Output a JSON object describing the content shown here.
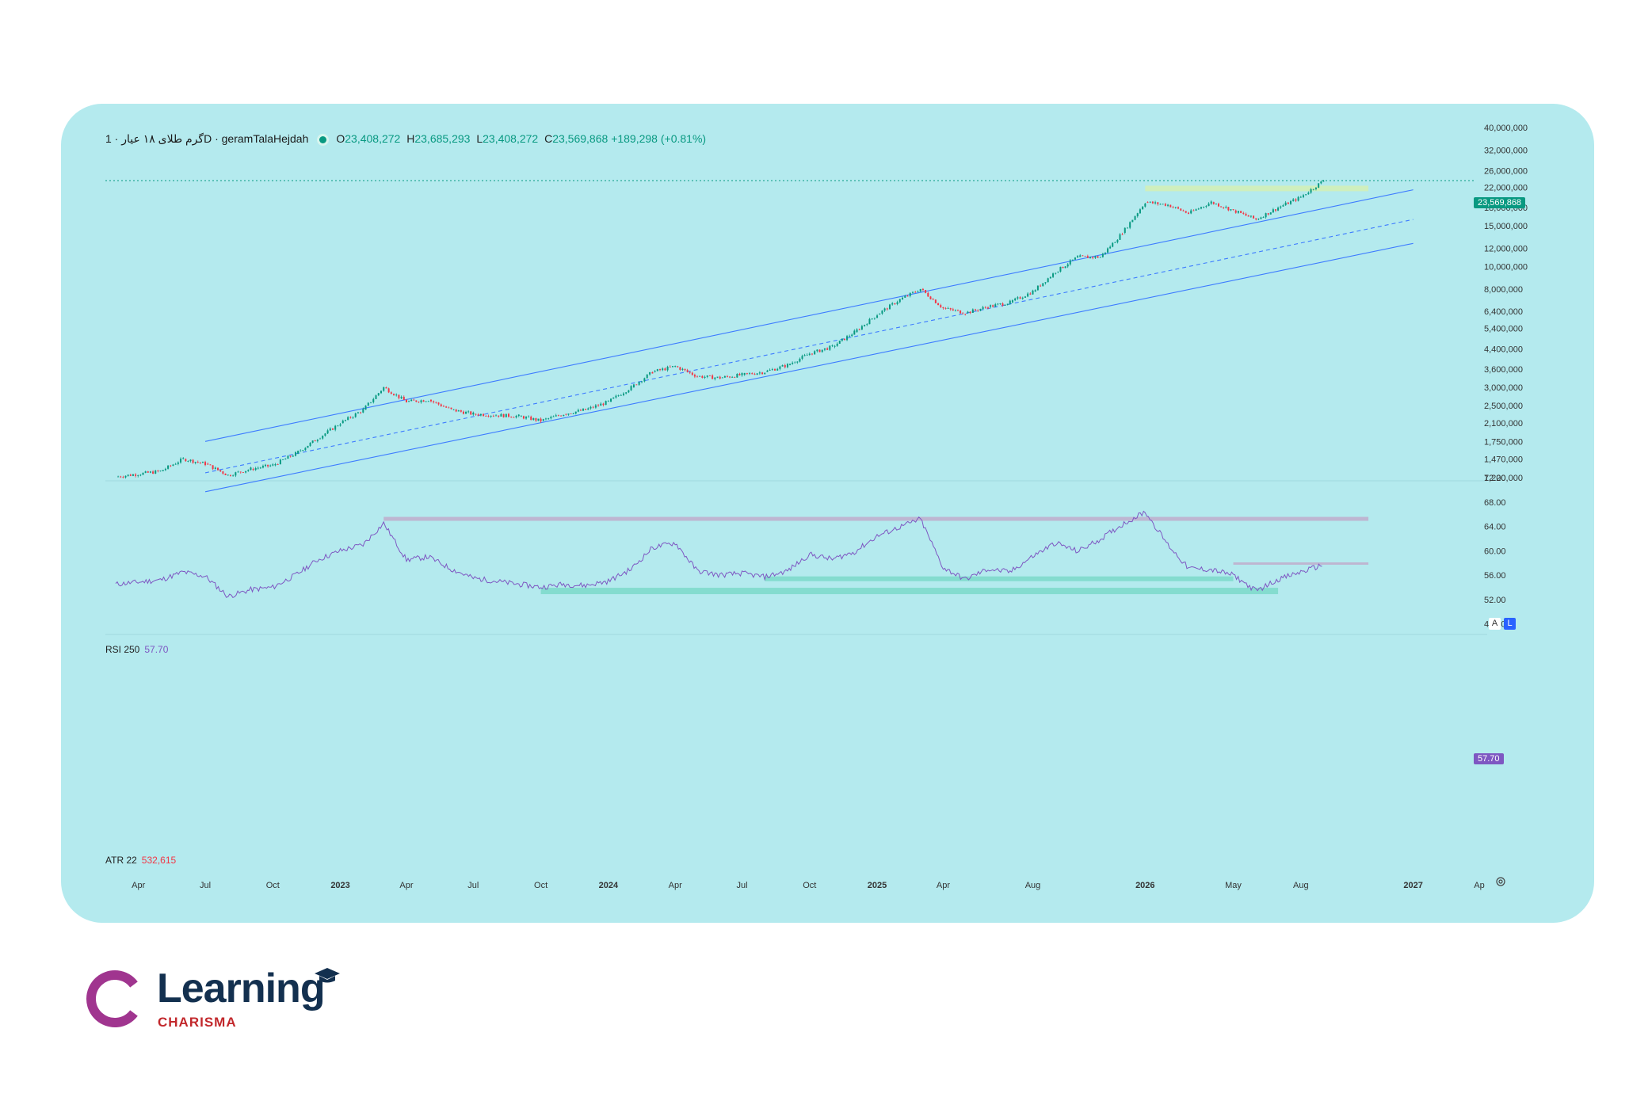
{
  "legend": {
    "symbol": "گرم طلای ۱۸ عیار · 1D · geramTalaHejdah",
    "open_label": "O",
    "open": "23,408,272",
    "high_label": "H",
    "high": "23,685,293",
    "low_label": "L",
    "low": "23,408,272",
    "close_label": "C",
    "close": "23,569,868",
    "change": "+189,298 (+0.81%)"
  },
  "last_price_tag": "23,569,868",
  "price_axis": [
    "40,000,000",
    "32,000,000",
    "26,000,000",
    "22,000,000",
    "18,000,000",
    "15,000,000",
    "12,000,000",
    "10,000,000",
    "8,000,000",
    "6,400,000",
    "5,400,000",
    "4,400,000",
    "3,600,000",
    "3,000,000",
    "2,500,000",
    "2,100,000",
    "1,750,000",
    "1,470,000",
    "1,220,000"
  ],
  "rsi": {
    "label": "RSI 250",
    "value": "57.70",
    "axis": [
      "72.00",
      "68.00",
      "64.00",
      "60.00",
      "56.00",
      "52.00",
      "48.00"
    ]
  },
  "atr": {
    "label": "ATR 22",
    "value": "532,615"
  },
  "time_axis": [
    "Apr",
    "Jul",
    "Oct",
    "2023",
    "Apr",
    "Jul",
    "Oct",
    "2024",
    "Apr",
    "Jul",
    "Oct",
    "2025",
    "Apr",
    "Aug",
    "2026",
    "May",
    "Aug",
    "2027",
    "Ap"
  ],
  "buttons": {
    "auto": "A",
    "log": "L"
  },
  "colors": {
    "background": "#b4eaee",
    "up": "#089981",
    "down": "#f23645",
    "channel": "#3d7bff",
    "rsi": "#7e57c2"
  },
  "logo": {
    "word": "Learning",
    "sub": "CHARISMA"
  },
  "chart_data": {
    "type": "candlestick",
    "scale": "log",
    "x_range": [
      "2022-03",
      "2027-04"
    ],
    "y_range": [
      1220000,
      40000000
    ],
    "last_close": 23569868,
    "closes": [
      {
        "date": "2022-03",
        "value": 1230000
      },
      {
        "date": "2022-05",
        "value": 1300000
      },
      {
        "date": "2022-06",
        "value": 1470000
      },
      {
        "date": "2022-07",
        "value": 1400000
      },
      {
        "date": "2022-08",
        "value": 1250000
      },
      {
        "date": "2022-09",
        "value": 1330000
      },
      {
        "date": "2022-10",
        "value": 1380000
      },
      {
        "date": "2022-11",
        "value": 1550000
      },
      {
        "date": "2022-12",
        "value": 1800000
      },
      {
        "date": "2023-01",
        "value": 2100000
      },
      {
        "date": "2023-02",
        "value": 2400000
      },
      {
        "date": "2023-03",
        "value": 3000000
      },
      {
        "date": "2023-04",
        "value": 2600000
      },
      {
        "date": "2023-05",
        "value": 2650000
      },
      {
        "date": "2023-06",
        "value": 2400000
      },
      {
        "date": "2023-07",
        "value": 2300000
      },
      {
        "date": "2023-09",
        "value": 2250000
      },
      {
        "date": "2023-10",
        "value": 2150000
      },
      {
        "date": "2023-11",
        "value": 2300000
      },
      {
        "date": "2023-12",
        "value": 2400000
      },
      {
        "date": "2024-01",
        "value": 2600000
      },
      {
        "date": "2024-02",
        "value": 3000000
      },
      {
        "date": "2024-03",
        "value": 3500000
      },
      {
        "date": "2024-04",
        "value": 3700000
      },
      {
        "date": "2024-05",
        "value": 3350000
      },
      {
        "date": "2024-06",
        "value": 3300000
      },
      {
        "date": "2024-07",
        "value": 3400000
      },
      {
        "date": "2024-08",
        "value": 3500000
      },
      {
        "date": "2024-09",
        "value": 3750000
      },
      {
        "date": "2024-10",
        "value": 4200000
      },
      {
        "date": "2024-11",
        "value": 4500000
      },
      {
        "date": "2024-12",
        "value": 5200000
      },
      {
        "date": "2025-01",
        "value": 6200000
      },
      {
        "date": "2025-02",
        "value": 7200000
      },
      {
        "date": "2025-03",
        "value": 8000000
      },
      {
        "date": "2025-04",
        "value": 6600000
      },
      {
        "date": "2025-05",
        "value": 6300000
      },
      {
        "date": "2025-06",
        "value": 6700000
      },
      {
        "date": "2025-07",
        "value": 7000000
      },
      {
        "date": "2025-08",
        "value": 7800000
      },
      {
        "date": "2025-09",
        "value": 9500000
      },
      {
        "date": "2025-10",
        "value": 11000000
      },
      {
        "date": "2025-11",
        "value": 11000000
      },
      {
        "date": "2025-12",
        "value": 14000000
      },
      {
        "date": "2026-01",
        "value": 19000000
      },
      {
        "date": "2026-02",
        "value": 18500000
      },
      {
        "date": "2026-03",
        "value": 17000000
      },
      {
        "date": "2026-04",
        "value": 19000000
      },
      {
        "date": "2026-05",
        "value": 17500000
      },
      {
        "date": "2026-06",
        "value": 16000000
      },
      {
        "date": "2026-07",
        "value": 18000000
      },
      {
        "date": "2026-08",
        "value": 20000000
      },
      {
        "date": "2026-09",
        "value": 23569868
      }
    ],
    "rsi_series": [
      {
        "date": "2022-03",
        "value": 54.5
      },
      {
        "date": "2022-05",
        "value": 55.2
      },
      {
        "date": "2022-06",
        "value": 56.5
      },
      {
        "date": "2022-07",
        "value": 55.8
      },
      {
        "date": "2022-08",
        "value": 52.5
      },
      {
        "date": "2022-09",
        "value": 53.6
      },
      {
        "date": "2022-10",
        "value": 54.0
      },
      {
        "date": "2022-11",
        "value": 56.0
      },
      {
        "date": "2022-12",
        "value": 58.5
      },
      {
        "date": "2023-01",
        "value": 60.0
      },
      {
        "date": "2023-02",
        "value": 61.0
      },
      {
        "date": "2023-03",
        "value": 64.5
      },
      {
        "date": "2023-04",
        "value": 58.5
      },
      {
        "date": "2023-05",
        "value": 59.0
      },
      {
        "date": "2023-06",
        "value": 57.0
      },
      {
        "date": "2023-07",
        "value": 55.5
      },
      {
        "date": "2023-09",
        "value": 54.5
      },
      {
        "date": "2023-10",
        "value": 54.0
      },
      {
        "date": "2023-11",
        "value": 54.5
      },
      {
        "date": "2023-12",
        "value": 54.3
      },
      {
        "date": "2024-01",
        "value": 55.0
      },
      {
        "date": "2024-02",
        "value": 57.0
      },
      {
        "date": "2024-03",
        "value": 60.5
      },
      {
        "date": "2024-04",
        "value": 61.3
      },
      {
        "date": "2024-05",
        "value": 56.7
      },
      {
        "date": "2024-06",
        "value": 56.0
      },
      {
        "date": "2024-07",
        "value": 56.3
      },
      {
        "date": "2024-08",
        "value": 55.7
      },
      {
        "date": "2024-09",
        "value": 56.7
      },
      {
        "date": "2024-10",
        "value": 59.4
      },
      {
        "date": "2024-11",
        "value": 58.6
      },
      {
        "date": "2024-12",
        "value": 59.8
      },
      {
        "date": "2025-01",
        "value": 62.4
      },
      {
        "date": "2025-02",
        "value": 63.9
      },
      {
        "date": "2025-03",
        "value": 65.2
      },
      {
        "date": "2025-04",
        "value": 57.2
      },
      {
        "date": "2025-05",
        "value": 55.3
      },
      {
        "date": "2025-06",
        "value": 57.0
      },
      {
        "date": "2025-07",
        "value": 56.5
      },
      {
        "date": "2025-08",
        "value": 59.1
      },
      {
        "date": "2025-09",
        "value": 61.3
      },
      {
        "date": "2025-10",
        "value": 59.9
      },
      {
        "date": "2025-11",
        "value": 61.9
      },
      {
        "date": "2025-12",
        "value": 64.3
      },
      {
        "date": "2026-01",
        "value": 66.4
      },
      {
        "date": "2026-02",
        "value": 61.0
      },
      {
        "date": "2026-03",
        "value": 57.1
      },
      {
        "date": "2026-04",
        "value": 56.9
      },
      {
        "date": "2026-05",
        "value": 56.0
      },
      {
        "date": "2026-06",
        "value": 53.4
      },
      {
        "date": "2026-07",
        "value": 55.3
      },
      {
        "date": "2026-08",
        "value": 56.5
      },
      {
        "date": "2026-09",
        "value": 57.7
      }
    ],
    "rsi_range": [
      46,
      72
    ]
  }
}
